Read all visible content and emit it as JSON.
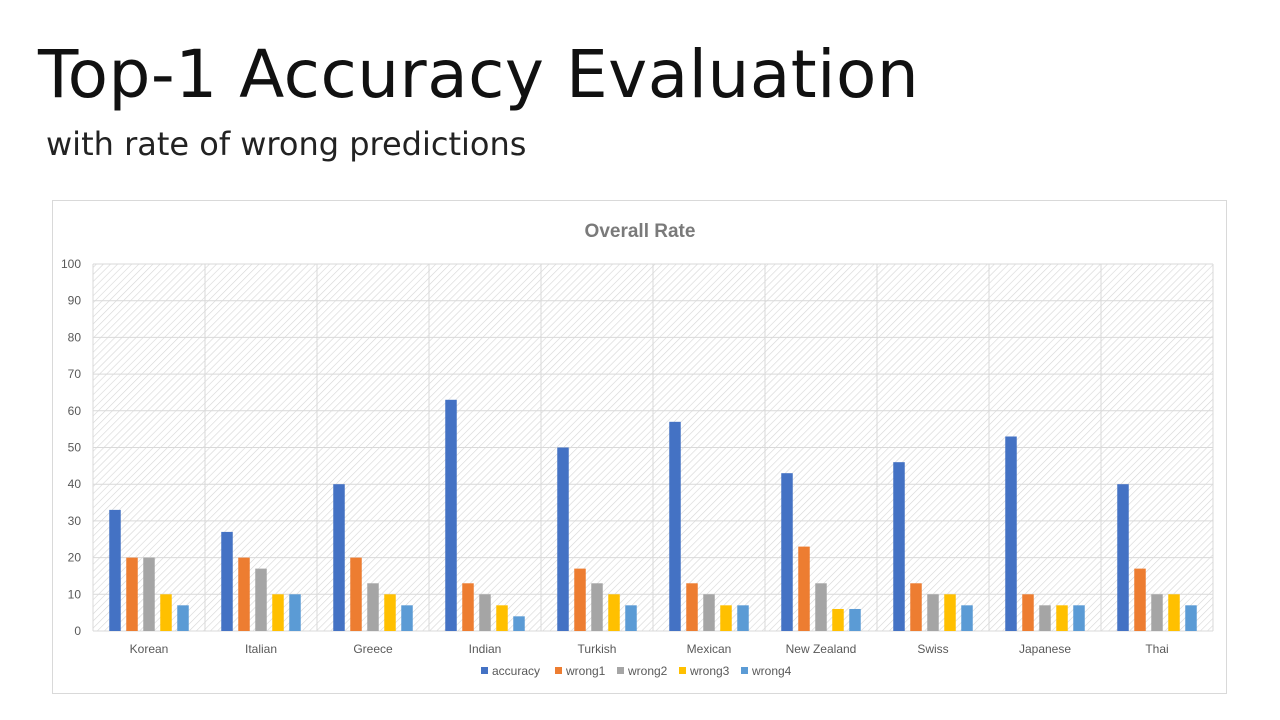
{
  "slide": {
    "title": "Top-1 Accuracy Evaluation",
    "subtitle": "with rate of wrong predictions"
  },
  "chart_data": {
    "type": "bar",
    "title": "Overall  Rate",
    "xlabel": "",
    "ylabel": "",
    "ylim": [
      0,
      100
    ],
    "yticks": [
      0,
      10,
      20,
      30,
      40,
      50,
      60,
      70,
      80,
      90,
      100
    ],
    "grid": true,
    "legend_position": "bottom",
    "categories": [
      "Korean",
      "Italian",
      "Greece",
      "Indian",
      "Turkish",
      "Mexican",
      "New Zealand",
      "Swiss",
      "Japanese",
      "Thai"
    ],
    "series": [
      {
        "name": "accuracy",
        "color": "#4472C4",
        "values": [
          33,
          27,
          40,
          63,
          50,
          57,
          43,
          46,
          53,
          40
        ]
      },
      {
        "name": "wrong1",
        "color": "#ED7D31",
        "values": [
          20,
          20,
          20,
          13,
          17,
          13,
          23,
          13,
          10,
          17
        ]
      },
      {
        "name": "wrong2",
        "color": "#A5A5A5",
        "values": [
          20,
          17,
          13,
          10,
          13,
          10,
          13,
          10,
          7,
          10
        ]
      },
      {
        "name": "wrong3",
        "color": "#FFC000",
        "values": [
          10,
          10,
          10,
          7,
          10,
          7,
          6,
          10,
          7,
          10
        ]
      },
      {
        "name": "wrong4",
        "color": "#5B9BD5",
        "values": [
          7,
          10,
          7,
          4,
          7,
          7,
          6,
          7,
          7,
          7
        ]
      }
    ]
  }
}
